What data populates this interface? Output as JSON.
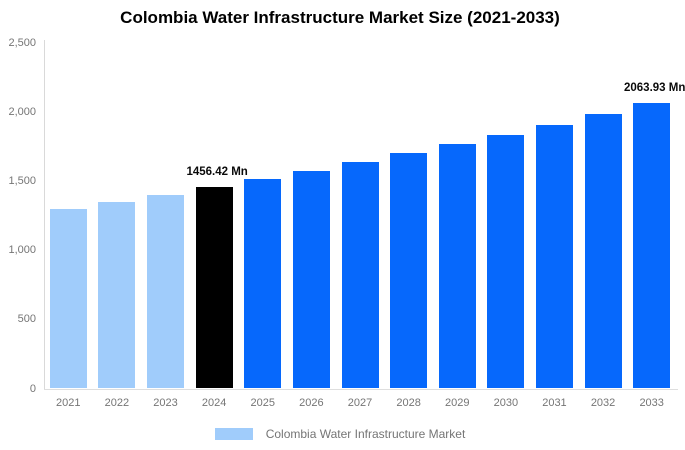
{
  "title": "Colombia Water Infrastructure Market Size (2021-2033)",
  "legend": {
    "label": "Colombia Water Infrastructure Market",
    "swatch_color": "#a0ccfb"
  },
  "colors": {
    "historical_bar": "#a0ccfb",
    "base_year_bar": "#000000",
    "forecast_bar": "#0668fc",
    "axis_line": "#d9d9d9",
    "tick_text": "#757575",
    "title_text": "#000000",
    "annotation_text": "#0a0a0a"
  },
  "chart_data": {
    "type": "bar",
    "title": "Colombia Water Infrastructure Market Size (2021-2033)",
    "xlabel": "",
    "ylabel": "",
    "ylim": [
      0,
      2500
    ],
    "grid": false,
    "legend_position": "bottom",
    "categories": [
      "2021",
      "2022",
      "2023",
      "2024",
      "2025",
      "2026",
      "2027",
      "2028",
      "2029",
      "2030",
      "2031",
      "2032",
      "2033"
    ],
    "values": [
      1296.64,
      1347.85,
      1401.08,
      1456.42,
      1513.94,
      1573.73,
      1635.89,
      1700.49,
      1767.65,
      1837.46,
      1910.02,
      1985.45,
      2063.93
    ],
    "bar_colors": [
      "#a0ccfb",
      "#a0ccfb",
      "#a0ccfb",
      "#000000",
      "#0668fc",
      "#0668fc",
      "#0668fc",
      "#0668fc",
      "#0668fc",
      "#0668fc",
      "#0668fc",
      "#0668fc",
      "#0668fc"
    ],
    "yticks": [
      {
        "value": 0,
        "label": "0"
      },
      {
        "value": 500,
        "label": "500"
      },
      {
        "value": 1000,
        "label": "1,000"
      },
      {
        "value": 1500,
        "label": "1,500"
      },
      {
        "value": 2000,
        "label": "2,000"
      },
      {
        "value": 2500,
        "label": "2,500"
      }
    ],
    "annotations": [
      {
        "category": "2024",
        "text": "1456.42 Mn"
      },
      {
        "category": "2033",
        "text": "2063.93 Mn"
      }
    ]
  }
}
